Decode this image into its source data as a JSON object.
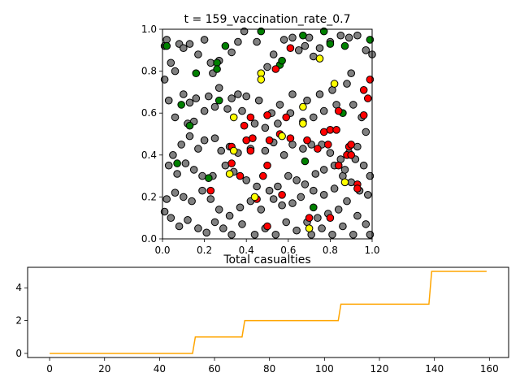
{
  "chart_data": [
    {
      "type": "scatter",
      "title": "t = 159_vaccination_rate_0.7",
      "xlabel": "",
      "ylabel": "",
      "xlim": [
        0,
        1
      ],
      "ylim": [
        0,
        1
      ],
      "xticks": [
        "0.0",
        "0.2",
        "0.4",
        "0.6",
        "0.8",
        "1.0"
      ],
      "yticks": [
        "0.0",
        "0.2",
        "0.4",
        "0.6",
        "0.8",
        "1.0"
      ],
      "marker_edge_color": "#000000",
      "series": [
        {
          "color": "#808080",
          "points": [
            [
              0.01,
              0.76
            ],
            [
              0.01,
              0.92
            ],
            [
              0.02,
              0.95
            ],
            [
              0.04,
              0.84
            ],
            [
              0.06,
              0.8
            ],
            [
              0.08,
              0.93
            ],
            [
              0.1,
              0.91
            ],
            [
              0.13,
              0.93
            ],
            [
              0.17,
              0.88
            ],
            [
              0.2,
              0.95
            ],
            [
              0.23,
              0.84
            ],
            [
              0.24,
              0.79
            ],
            [
              0.27,
              0.85
            ],
            [
              0.33,
              0.89
            ],
            [
              0.36,
              0.94
            ],
            [
              0.39,
              0.99
            ],
            [
              0.45,
              0.94
            ],
            [
              0.5,
              0.82
            ],
            [
              0.53,
              0.88
            ],
            [
              0.58,
              0.95
            ],
            [
              0.62,
              0.96
            ],
            [
              0.65,
              0.9
            ],
            [
              0.68,
              0.92
            ],
            [
              0.7,
              0.96
            ],
            [
              0.72,
              0.87
            ],
            [
              0.75,
              0.91
            ],
            [
              0.8,
              0.94
            ],
            [
              0.85,
              0.97
            ],
            [
              0.89,
              0.96
            ],
            [
              0.93,
              0.97
            ],
            [
              0.97,
              0.9
            ],
            [
              1.0,
              0.88
            ],
            [
              0.9,
              0.79
            ],
            [
              0.88,
              0.74
            ],
            [
              0.81,
              0.71
            ],
            [
              0.75,
              0.69
            ],
            [
              0.69,
              0.66
            ],
            [
              0.62,
              0.69
            ],
            [
              0.56,
              0.64
            ],
            [
              0.52,
              0.6
            ],
            [
              0.46,
              0.66
            ],
            [
              0.4,
              0.68
            ],
            [
              0.36,
              0.69
            ],
            [
              0.33,
              0.67
            ],
            [
              0.27,
              0.72
            ],
            [
              0.22,
              0.68
            ],
            [
              0.16,
              0.67
            ],
            [
              0.13,
              0.65
            ],
            [
              0.1,
              0.69
            ],
            [
              0.03,
              0.66
            ],
            [
              0.06,
              0.58
            ],
            [
              0.12,
              0.55
            ],
            [
              0.15,
              0.56
            ],
            [
              0.2,
              0.61
            ],
            [
              0.25,
              0.63
            ],
            [
              0.31,
              0.62
            ],
            [
              0.38,
              0.61
            ],
            [
              0.44,
              0.55
            ],
            [
              0.49,
              0.53
            ],
            [
              0.55,
              0.55
            ],
            [
              0.61,
              0.6
            ],
            [
              0.67,
              0.56
            ],
            [
              0.72,
              0.58
            ],
            [
              0.77,
              0.61
            ],
            [
              0.83,
              0.64
            ],
            [
              0.91,
              0.64
            ],
            [
              0.95,
              0.58
            ],
            [
              0.97,
              0.51
            ],
            [
              0.93,
              0.44
            ],
            [
              0.89,
              0.41
            ],
            [
              0.85,
              0.38
            ],
            [
              0.8,
              0.41
            ],
            [
              0.76,
              0.45
            ],
            [
              0.71,
              0.45
            ],
            [
              0.67,
              0.43
            ],
            [
              0.62,
              0.45
            ],
            [
              0.58,
              0.4
            ],
            [
              0.53,
              0.46
            ],
            [
              0.49,
              0.42
            ],
            [
              0.42,
              0.43
            ],
            [
              0.36,
              0.41
            ],
            [
              0.32,
              0.44
            ],
            [
              0.28,
              0.42
            ],
            [
              0.25,
              0.48
            ],
            [
              0.2,
              0.47
            ],
            [
              0.17,
              0.43
            ],
            [
              0.13,
              0.49
            ],
            [
              0.09,
              0.45
            ],
            [
              0.05,
              0.4
            ],
            [
              0.03,
              0.35
            ],
            [
              0.07,
              0.31
            ],
            [
              0.11,
              0.36
            ],
            [
              0.15,
              0.33
            ],
            [
              0.19,
              0.3
            ],
            [
              0.24,
              0.3
            ],
            [
              0.3,
              0.35
            ],
            [
              0.34,
              0.32
            ],
            [
              0.4,
              0.28
            ],
            [
              0.45,
              0.25
            ],
            [
              0.51,
              0.23
            ],
            [
              0.55,
              0.25
            ],
            [
              0.6,
              0.3
            ],
            [
              0.64,
              0.28
            ],
            [
              0.68,
              0.26
            ],
            [
              0.73,
              0.31
            ],
            [
              0.77,
              0.33
            ],
            [
              0.82,
              0.35
            ],
            [
              0.86,
              0.3
            ],
            [
              0.9,
              0.27
            ],
            [
              0.94,
              0.23
            ],
            [
              0.98,
              0.21
            ],
            [
              0.99,
              0.3
            ],
            [
              0.96,
              0.35
            ],
            [
              0.92,
              0.38
            ],
            [
              0.87,
              0.33
            ],
            [
              0.82,
              0.24
            ],
            [
              0.77,
              0.21
            ],
            [
              0.72,
              0.23
            ],
            [
              0.66,
              0.2
            ],
            [
              0.62,
              0.17
            ],
            [
              0.57,
              0.16
            ],
            [
              0.53,
              0.19
            ],
            [
              0.47,
              0.14
            ],
            [
              0.42,
              0.18
            ],
            [
              0.37,
              0.15
            ],
            [
              0.32,
              0.11
            ],
            [
              0.27,
              0.14
            ],
            [
              0.23,
              0.19
            ],
            [
              0.19,
              0.23
            ],
            [
              0.14,
              0.18
            ],
            [
              0.1,
              0.2
            ],
            [
              0.06,
              0.22
            ],
            [
              0.02,
              0.19
            ],
            [
              0.01,
              0.13
            ],
            [
              0.04,
              0.1
            ],
            [
              0.08,
              0.06
            ],
            [
              0.12,
              0.09
            ],
            [
              0.17,
              0.05
            ],
            [
              0.21,
              0.03
            ],
            [
              0.25,
              0.08
            ],
            [
              0.29,
              0.05
            ],
            [
              0.33,
              0.02
            ],
            [
              0.38,
              0.07
            ],
            [
              0.44,
              0.02
            ],
            [
              0.49,
              0.05
            ],
            [
              0.54,
              0.02
            ],
            [
              0.59,
              0.08
            ],
            [
              0.64,
              0.04
            ],
            [
              0.69,
              0.08
            ],
            [
              0.74,
              0.1
            ],
            [
              0.79,
              0.12
            ],
            [
              0.84,
              0.14
            ],
            [
              0.88,
              0.18
            ],
            [
              0.93,
              0.11
            ],
            [
              0.97,
              0.07
            ],
            [
              0.99,
              0.02
            ],
            [
              0.91,
              0.02
            ],
            [
              0.86,
              0.06
            ],
            [
              0.81,
              0.02
            ],
            [
              0.76,
              0.05
            ],
            [
              0.71,
              0.02
            ]
          ]
        },
        {
          "color": "#008000",
          "points": [
            [
              0.02,
              0.92
            ],
            [
              0.09,
              0.64
            ],
            [
              0.16,
              0.79
            ],
            [
              0.26,
              0.84
            ],
            [
              0.26,
              0.81
            ],
            [
              0.27,
              0.66
            ],
            [
              0.3,
              0.92
            ],
            [
              0.47,
              0.99
            ],
            [
              0.56,
              0.83
            ],
            [
              0.57,
              0.85
            ],
            [
              0.67,
              0.97
            ],
            [
              0.77,
              0.99
            ],
            [
              0.8,
              0.93
            ],
            [
              0.87,
              0.92
            ],
            [
              0.86,
              0.6
            ],
            [
              0.13,
              0.54
            ],
            [
              0.07,
              0.36
            ],
            [
              0.68,
              0.37
            ],
            [
              0.72,
              0.15
            ],
            [
              0.22,
              0.29
            ],
            [
              0.99,
              0.95
            ]
          ]
        },
        {
          "color": "#ff0000",
          "points": [
            [
              0.54,
              0.81
            ],
            [
              0.61,
              0.91
            ],
            [
              0.42,
              0.58
            ],
            [
              0.39,
              0.54
            ],
            [
              0.4,
              0.47
            ],
            [
              0.42,
              0.42
            ],
            [
              0.43,
              0.48
            ],
            [
              0.56,
              0.5
            ],
            [
              0.59,
              0.58
            ],
            [
              0.61,
              0.48
            ],
            [
              0.5,
              0.59
            ],
            [
              0.51,
              0.47
            ],
            [
              0.5,
              0.35
            ],
            [
              0.48,
              0.3
            ],
            [
              0.33,
              0.44
            ],
            [
              0.33,
              0.36
            ],
            [
              0.37,
              0.3
            ],
            [
              0.45,
              0.19
            ],
            [
              0.57,
              0.21
            ],
            [
              0.69,
              0.47
            ],
            [
              0.74,
              0.43
            ],
            [
              0.77,
              0.51
            ],
            [
              0.8,
              0.52
            ],
            [
              0.79,
              0.45
            ],
            [
              0.83,
              0.52
            ],
            [
              0.84,
              0.61
            ],
            [
              0.84,
              0.35
            ],
            [
              0.89,
              0.44
            ],
            [
              0.9,
              0.45
            ],
            [
              0.88,
              0.4
            ],
            [
              0.9,
              0.4
            ],
            [
              0.96,
              0.71
            ],
            [
              0.99,
              0.76
            ],
            [
              0.98,
              0.67
            ],
            [
              0.96,
              0.59
            ],
            [
              0.93,
              0.26
            ],
            [
              0.93,
              0.24
            ],
            [
              0.23,
              0.23
            ],
            [
              0.5,
              0.06
            ],
            [
              0.7,
              0.1
            ],
            [
              0.8,
              0.1
            ]
          ]
        },
        {
          "color": "#ffff00",
          "points": [
            [
              0.47,
              0.79
            ],
            [
              0.47,
              0.76
            ],
            [
              0.75,
              0.86
            ],
            [
              0.67,
              0.63
            ],
            [
              0.67,
              0.55
            ],
            [
              0.82,
              0.74
            ],
            [
              0.34,
              0.58
            ],
            [
              0.34,
              0.42
            ],
            [
              0.32,
              0.31
            ],
            [
              0.44,
              0.2
            ],
            [
              0.87,
              0.27
            ],
            [
              0.7,
              0.05
            ],
            [
              0.57,
              0.49
            ]
          ]
        }
      ]
    },
    {
      "type": "line",
      "title": "Total casualties",
      "xlabel": "",
      "ylabel": "",
      "xlim": [
        -8,
        167
      ],
      "ylim": [
        -0.25,
        5.25
      ],
      "xticks": [
        "0",
        "20",
        "40",
        "60",
        "80",
        "100",
        "120",
        "140",
        "160"
      ],
      "yticks": [
        "0",
        "2",
        "4"
      ],
      "color": "#ffa500",
      "series": [
        {
          "x": [
            0,
            52,
            53,
            70,
            71,
            105,
            106,
            138,
            139,
            159
          ],
          "y": [
            0,
            0,
            1,
            1,
            2,
            2,
            3,
            3,
            5,
            5
          ]
        }
      ]
    }
  ]
}
